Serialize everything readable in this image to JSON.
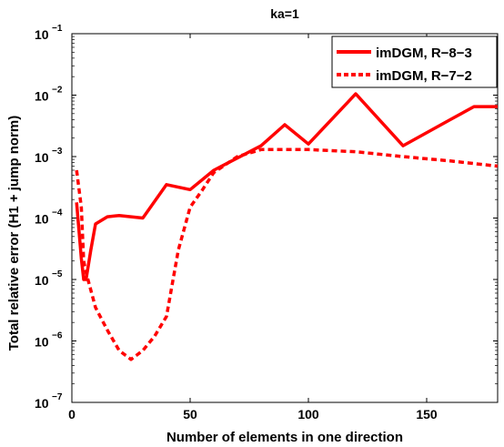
{
  "chart_data": {
    "type": "line",
    "title": "ka=1",
    "xlabel": "Number of elements in one direction",
    "ylabel": "Total relative error (H1 + jump norm)",
    "xlim": [
      0,
      180
    ],
    "ylim_exponent": [
      -7,
      -1
    ],
    "yscale": "log",
    "x_ticks": [
      0,
      50,
      100,
      150
    ],
    "y_tick_base": "10",
    "y_tick_exponents": [
      "−7",
      "−6",
      "−5",
      "−4",
      "−3",
      "−2",
      "−1"
    ],
    "legend_position": "top-right",
    "series": [
      {
        "name": "imDGM, R−8−3",
        "style": "solid",
        "color": "#ff0000",
        "points": [
          [
            2,
            0.00018
          ],
          [
            4,
            2.2e-05
          ],
          [
            5,
            1e-05
          ],
          [
            6,
            1e-05
          ],
          [
            8,
            3e-05
          ],
          [
            10,
            8e-05
          ],
          [
            15,
            0.000105
          ],
          [
            20,
            0.00011
          ],
          [
            30,
            0.0001
          ],
          [
            40,
            0.00035
          ],
          [
            50,
            0.00029
          ],
          [
            60,
            0.0006
          ],
          [
            80,
            0.0015
          ],
          [
            90,
            0.0033
          ],
          [
            100,
            0.0016
          ],
          [
            120,
            0.0105
          ],
          [
            140,
            0.0015
          ],
          [
            160,
            0.004
          ],
          [
            170,
            0.0065
          ],
          [
            180,
            0.0065
          ]
        ]
      },
      {
        "name": "imDGM, R−7−2",
        "style": "dashed",
        "color": "#ff0000",
        "points": [
          [
            2,
            0.0006
          ],
          [
            4,
            0.00015
          ],
          [
            5,
            2e-05
          ],
          [
            6,
            1.3e-05
          ],
          [
            10,
            3.5e-06
          ],
          [
            15,
            1.5e-06
          ],
          [
            20,
            7e-07
          ],
          [
            25,
            5e-07
          ],
          [
            30,
            7e-07
          ],
          [
            35,
            1.2e-06
          ],
          [
            40,
            2.5e-06
          ],
          [
            45,
            3e-05
          ],
          [
            50,
            0.00015
          ],
          [
            55,
            0.00028
          ],
          [
            60,
            0.00055
          ],
          [
            70,
            0.001
          ],
          [
            80,
            0.0013
          ],
          [
            100,
            0.0013
          ],
          [
            120,
            0.0012
          ],
          [
            140,
            0.001
          ],
          [
            160,
            0.00085
          ],
          [
            180,
            0.0007
          ]
        ]
      }
    ]
  }
}
